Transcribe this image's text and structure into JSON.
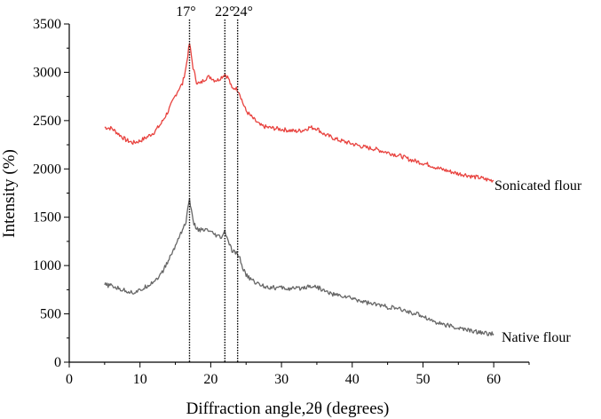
{
  "chart_data": {
    "type": "line",
    "title": "",
    "xlabel": "Diffraction angle,2θ (degrees)",
    "ylabel": "Intensity (%)",
    "xlim": [
      0,
      65
    ],
    "ylim": [
      0,
      3500
    ],
    "xticks": [
      0,
      10,
      20,
      30,
      40,
      50,
      60
    ],
    "yticks": [
      0,
      500,
      1000,
      1500,
      2000,
      2500,
      3000,
      3500
    ],
    "series": [
      {
        "name": "Sonicated flour",
        "color": "#e8433f",
        "x": [
          5,
          6,
          7,
          8,
          9,
          10,
          11,
          12,
          13,
          14,
          15,
          15.5,
          16,
          16.5,
          17,
          17.5,
          18,
          18.5,
          19,
          19.5,
          20,
          20.5,
          21,
          21.5,
          22,
          22.5,
          23,
          23.5,
          24,
          24.5,
          25,
          26,
          27,
          28,
          29,
          30,
          31,
          32,
          33,
          34,
          35,
          36,
          37,
          38,
          39,
          40,
          41,
          42,
          43,
          44,
          45,
          46,
          47,
          48,
          49,
          50,
          51,
          52,
          53,
          54,
          55,
          56,
          57,
          58,
          59,
          60
        ],
        "y": [
          2430,
          2420,
          2360,
          2300,
          2270,
          2290,
          2330,
          2380,
          2470,
          2600,
          2760,
          2830,
          2880,
          3050,
          3300,
          3050,
          2900,
          2880,
          2920,
          2950,
          2950,
          2920,
          2920,
          2950,
          2980,
          2940,
          2830,
          2840,
          2800,
          2690,
          2600,
          2520,
          2450,
          2430,
          2420,
          2410,
          2400,
          2390,
          2400,
          2430,
          2420,
          2360,
          2330,
          2300,
          2280,
          2260,
          2240,
          2220,
          2210,
          2190,
          2170,
          2150,
          2130,
          2100,
          2080,
          2060,
          2040,
          2010,
          1990,
          1970,
          1950,
          1940,
          1920,
          1910,
          1890,
          1880
        ]
      },
      {
        "name": "Native flour",
        "color": "#666666",
        "x": [
          5,
          6,
          7,
          8,
          9,
          10,
          11,
          12,
          13,
          14,
          15,
          15.5,
          16,
          16.5,
          17,
          17.5,
          18,
          18.5,
          19,
          19.5,
          20,
          20.5,
          21,
          21.5,
          22,
          22.5,
          23,
          23.5,
          24,
          24.5,
          25,
          26,
          27,
          28,
          29,
          30,
          31,
          32,
          33,
          34,
          35,
          36,
          37,
          38,
          39,
          40,
          41,
          42,
          43,
          44,
          45,
          46,
          47,
          48,
          49,
          50,
          51,
          52,
          53,
          54,
          55,
          56,
          57,
          58,
          59,
          60
        ],
        "y": [
          800,
          790,
          760,
          740,
          720,
          740,
          790,
          840,
          910,
          1050,
          1200,
          1300,
          1370,
          1450,
          1700,
          1450,
          1380,
          1370,
          1360,
          1370,
          1340,
          1320,
          1300,
          1290,
          1350,
          1250,
          1150,
          1130,
          1100,
          980,
          900,
          840,
          800,
          780,
          770,
          770,
          760,
          760,
          770,
          790,
          780,
          740,
          710,
          690,
          680,
          660,
          640,
          620,
          600,
          590,
          570,
          560,
          540,
          520,
          500,
          480,
          440,
          410,
          390,
          370,
          350,
          340,
          320,
          310,
          300,
          290
        ]
      }
    ],
    "series_labels": [
      "Sonicated flour",
      "Native flour"
    ],
    "annotations": [
      {
        "x": 17,
        "label": "17°"
      },
      {
        "x": 22,
        "label": "22°"
      },
      {
        "x": 23.8,
        "label": "24°"
      }
    ],
    "grid": false
  }
}
